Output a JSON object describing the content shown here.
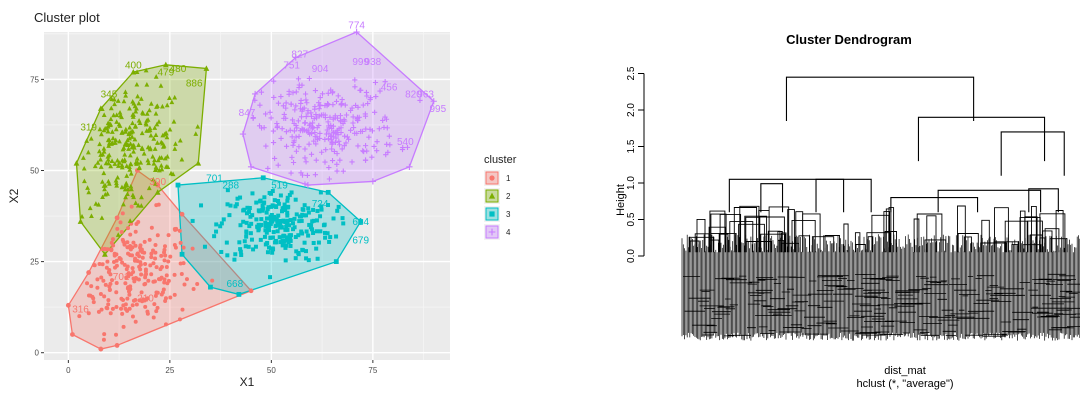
{
  "chart_data": [
    {
      "type": "scatter",
      "title": "Cluster plot",
      "xlabel": "X1",
      "ylabel": "X2",
      "xlim": [
        -6,
        94
      ],
      "ylim": [
        -2,
        88
      ],
      "xticks": [
        "0",
        "25",
        "50",
        "75"
      ],
      "xtick_values": [
        0,
        25,
        50,
        75
      ],
      "yticks": [
        "0",
        "25",
        "50",
        "75"
      ],
      "ytick_values": [
        0,
        25,
        50,
        75
      ],
      "grid": true,
      "legend_title": "cluster",
      "legend_position": "right",
      "series": [
        {
          "name": "1",
          "color": "#F8766D",
          "shape": "circle",
          "center": [
            16,
            22
          ],
          "spread": [
            7,
            8
          ],
          "n": 240,
          "hull": [
            [
              1,
              5
            ],
            [
              8,
              1
            ],
            [
              12,
              2
            ],
            [
              45,
              17
            ],
            [
              28,
              38
            ],
            [
              22,
              46
            ],
            [
              17,
              50
            ],
            [
              12,
              37
            ],
            [
              5,
              22
            ],
            [
              0,
              13
            ]
          ],
          "labels": [
            {
              "x": 22,
              "y": 46,
              "text": "390"
            },
            {
              "x": 3,
              "y": 11,
              "text": "316"
            },
            {
              "x": 13,
              "y": 20,
              "text": "701"
            },
            {
              "x": 19,
              "y": 14,
              "text": "210"
            }
          ]
        },
        {
          "name": "2",
          "color": "#7CAE00",
          "shape": "triangle",
          "center": [
            15,
            56
          ],
          "spread": [
            7,
            9
          ],
          "n": 260,
          "hull": [
            [
              2,
              52
            ],
            [
              8,
              67
            ],
            [
              16,
              77
            ],
            [
              24,
              79
            ],
            [
              34,
              78
            ],
            [
              32,
              52
            ],
            [
              22,
              44
            ],
            [
              9,
              27
            ],
            [
              3,
              36
            ]
          ],
          "labels": [
            {
              "x": 16,
              "y": 78,
              "text": "400"
            },
            {
              "x": 27,
              "y": 77,
              "text": "480"
            },
            {
              "x": 24,
              "y": 76,
              "text": "479"
            },
            {
              "x": 31,
              "y": 73,
              "text": "886"
            },
            {
              "x": 5,
              "y": 61,
              "text": "319"
            },
            {
              "x": 10,
              "y": 70,
              "text": "345"
            }
          ]
        },
        {
          "name": "3",
          "color": "#00BFC4",
          "shape": "square",
          "center": [
            51,
            35
          ],
          "spread": [
            7,
            5
          ],
          "n": 250,
          "hull": [
            [
              27,
              46
            ],
            [
              48,
              48
            ],
            [
              64,
              44
            ],
            [
              72,
              36
            ],
            [
              66,
              25
            ],
            [
              42,
              16
            ],
            [
              35,
              18
            ],
            [
              28,
              27
            ]
          ],
          "labels": [
            {
              "x": 36,
              "y": 47,
              "text": "701"
            },
            {
              "x": 40,
              "y": 45,
              "text": "288"
            },
            {
              "x": 62,
              "y": 40,
              "text": "724"
            },
            {
              "x": 72,
              "y": 35,
              "text": "614"
            },
            {
              "x": 72,
              "y": 30,
              "text": "679"
            },
            {
              "x": 41,
              "y": 18,
              "text": "668"
            },
            {
              "x": 52,
              "y": 45,
              "text": "519"
            }
          ]
        },
        {
          "name": "4",
          "color": "#C77CFF",
          "shape": "cross",
          "center": [
            63,
            62
          ],
          "spread": [
            9,
            6
          ],
          "n": 280,
          "hull": [
            [
              71,
              88
            ],
            [
              90,
              69
            ],
            [
              84,
              51
            ],
            [
              75,
              47
            ],
            [
              59,
              46
            ],
            [
              45,
              51
            ],
            [
              43,
              60
            ],
            [
              46,
              71
            ],
            [
              56,
              81
            ]
          ],
          "labels": [
            {
              "x": 71,
              "y": 89,
              "text": "774"
            },
            {
              "x": 57,
              "y": 81,
              "text": "827"
            },
            {
              "x": 55,
              "y": 78,
              "text": "751"
            },
            {
              "x": 62,
              "y": 77,
              "text": "904"
            },
            {
              "x": 72,
              "y": 79,
              "text": "999"
            },
            {
              "x": 75,
              "y": 79,
              "text": "938"
            },
            {
              "x": 79,
              "y": 72,
              "text": "456"
            },
            {
              "x": 85,
              "y": 70,
              "text": "820"
            },
            {
              "x": 88,
              "y": 70,
              "text": "963"
            },
            {
              "x": 91,
              "y": 66,
              "text": "995"
            },
            {
              "x": 44,
              "y": 65,
              "text": "847"
            },
            {
              "x": 83,
              "y": 57,
              "text": "540"
            }
          ]
        }
      ]
    },
    {
      "type": "dendrogram",
      "title": "Cluster Dendrogram",
      "xlabel": "dist_mat",
      "sublabel": "hclust (*, \"average\")",
      "ylabel": "Height",
      "ylim": [
        -1.2,
        2.7
      ],
      "yticks": [
        "0.0",
        "0.5",
        "1.0",
        "1.5",
        "2.0",
        "2.5"
      ],
      "ytick_values": [
        0,
        0.5,
        1.0,
        1.5,
        2.0,
        2.5
      ],
      "grid": false,
      "merges": [
        {
          "left": 0.255,
          "right": 0.73,
          "height": 2.45
        },
        {
          "left": 0.59,
          "right": 0.91,
          "height": 1.9
        },
        {
          "left": 0.8,
          "right": 0.96,
          "height": 1.7
        },
        {
          "left": 0.11,
          "right": 0.4,
          "height": 1.05
        },
        {
          "left": 0.33,
          "right": 0.47,
          "height": 1.05
        },
        {
          "left": 0.245,
          "right": 0.19,
          "height": 0.99
        },
        {
          "left": 0.64,
          "right": 0.9,
          "height": 0.9
        },
        {
          "left": 0.87,
          "right": 0.945,
          "height": 0.92
        },
        {
          "left": 0.52,
          "right": 0.74,
          "height": 0.8
        }
      ]
    }
  ]
}
